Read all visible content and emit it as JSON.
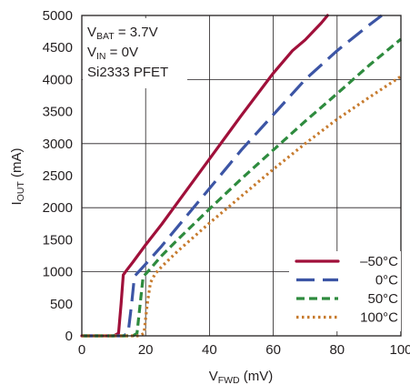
{
  "chart_data": {
    "type": "line",
    "xlabel_main": "V",
    "xlabel_sub": "FWD",
    "xlabel_unit": " (mV)",
    "ylabel_main": "I",
    "ylabel_sub": "OUT",
    "ylabel_unit": " (mA)",
    "xlim": [
      0,
      100
    ],
    "ylim": [
      0,
      5000
    ],
    "xticks": [
      "0",
      "20",
      "40",
      "60",
      "80",
      "100"
    ],
    "yticks": [
      "0",
      "500",
      "1000",
      "1500",
      "2000",
      "2500",
      "3000",
      "3500",
      "4000",
      "4500",
      "5000"
    ],
    "grid": true,
    "legend_position": "bottom-right",
    "annotation": {
      "line1_main": "V",
      "line1_sub": "BAT",
      "line1_rest": " = 3.7V",
      "line2_main": "V",
      "line2_sub": "IN",
      "line2_rest": " = 0V",
      "line3": "Si2333 PFET"
    },
    "series": [
      {
        "name": "–50°C",
        "color": "#a0103a",
        "dash": "solid",
        "x": [
          0,
          10,
          11.5,
          12.3,
          13,
          14,
          16,
          20,
          25,
          30,
          40,
          50,
          60,
          66,
          70,
          75,
          77
        ],
        "y": [
          0,
          0,
          40,
          500,
          950,
          1020,
          1150,
          1420,
          1740,
          2080,
          2760,
          3440,
          4100,
          4450,
          4620,
          4880,
          5000
        ]
      },
      {
        "name": "0°C",
        "color": "#3c55a5",
        "dash": "longdash",
        "x": [
          0,
          13,
          14.5,
          15.6,
          16.5,
          18,
          20,
          25,
          30,
          40,
          50,
          60,
          70,
          80,
          90,
          94
        ],
        "y": [
          0,
          0,
          40,
          500,
          930,
          1010,
          1120,
          1400,
          1700,
          2300,
          2900,
          3450,
          4000,
          4450,
          4850,
          5000
        ]
      },
      {
        "name": "50°C",
        "color": "#2e8b3e",
        "dash": "dashed",
        "x": [
          0,
          16,
          17.3,
          18.3,
          19.2,
          21,
          25,
          30,
          40,
          50,
          60,
          70,
          80,
          90,
          100
        ],
        "y": [
          0,
          0,
          40,
          500,
          920,
          1020,
          1250,
          1500,
          1980,
          2450,
          2900,
          3350,
          3780,
          4220,
          4630
        ]
      },
      {
        "name": "100°C",
        "color": "#c77b2e",
        "dash": "dotted",
        "x": [
          0,
          18,
          19.5,
          20.5,
          21.5,
          23,
          25,
          30,
          40,
          50,
          60,
          70,
          80,
          90,
          100
        ],
        "y": [
          0,
          0,
          40,
          500,
          830,
          970,
          1080,
          1320,
          1760,
          2180,
          2600,
          3000,
          3380,
          3720,
          4050
        ]
      }
    ]
  }
}
